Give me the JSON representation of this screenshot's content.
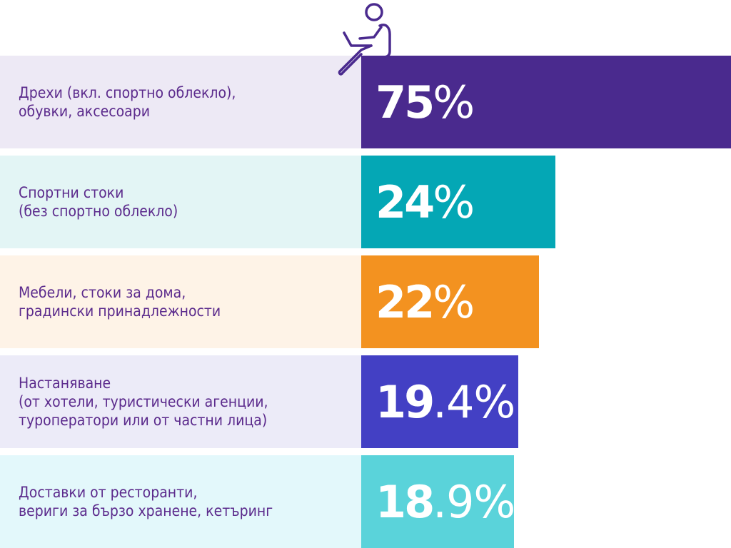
{
  "chart_data": {
    "type": "bar",
    "orientation": "horizontal",
    "unit": "%",
    "categories": [
      "Дрехи (вкл. спортно облекло),\nобувки, аксесоари",
      "Спортни стоки\n(без спортно облекло)",
      "Мебели, стоки за дома,\nградински принадлежности",
      "Настаняване\n(от хотели, туристически агенции,\nтуроператори или от частни лица)",
      "Доставки от ресторанти,\nвериги за бързо хранене, кетъринг"
    ],
    "values": [
      75,
      24,
      22,
      19.4,
      18.9
    ],
    "value_labels": [
      {
        "bold": "75",
        "light": "%"
      },
      {
        "bold": "24",
        "light": "%"
      },
      {
        "bold": "22",
        "light": "%"
      },
      {
        "bold": "19",
        "light": ".4%"
      },
      {
        "bold": "18",
        "light": ".9%"
      }
    ],
    "bar_colors": [
      "#4a2a8e",
      "#04a7b5",
      "#f39220",
      "#4340c4",
      "#5ad3da"
    ],
    "label_bg_colors": [
      "#ede9f5",
      "#e3f5f5",
      "#fef3e7",
      "#ecebf8",
      "#e3f8fb"
    ],
    "text_color": "#5b2a8c",
    "icon": "person-with-laptop-icon"
  }
}
